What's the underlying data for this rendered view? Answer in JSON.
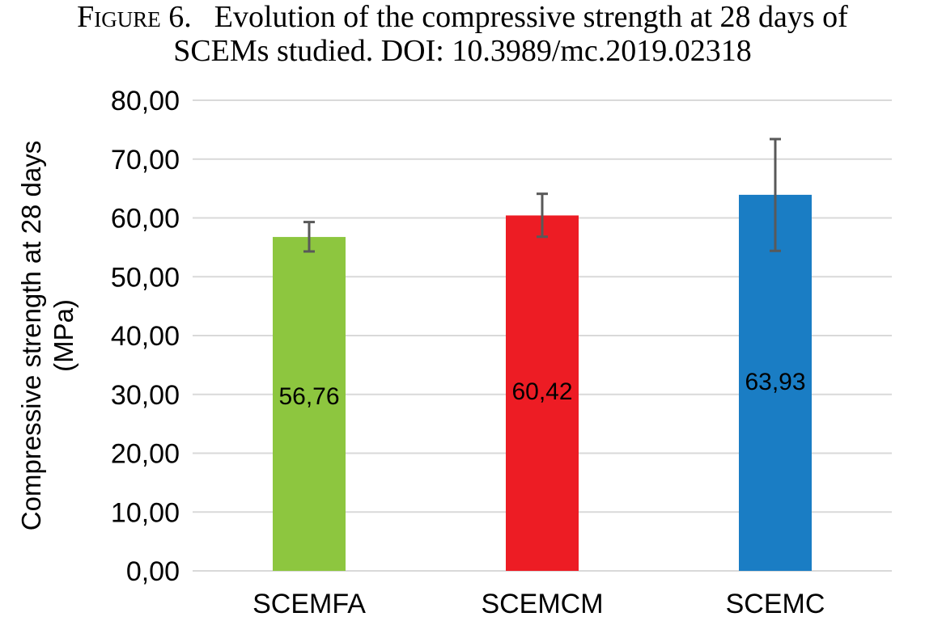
{
  "caption": {
    "label": "Figure 6.",
    "line1": "Evolution of the compressive strength at 28 days of",
    "line2": "SCEMs studied. DOI: 10.3989/mc.2019.02318"
  },
  "chart_data": {
    "type": "bar",
    "title": "",
    "xlabel": "",
    "ylabel_lines": [
      "Compressive strength at 28 days",
      "(MPa)"
    ],
    "categories": [
      "SCEMFA",
      "SCEMCM",
      "SCEMC"
    ],
    "values": [
      56.76,
      60.42,
      63.93
    ],
    "value_labels": [
      "56,76",
      "60,42",
      "63,93"
    ],
    "error_bars": [
      {
        "high": 59.3,
        "low": 54.3
      },
      {
        "high": 64.1,
        "low": 56.8
      },
      {
        "high": 73.4,
        "low": 54.4
      }
    ],
    "colors": [
      "#8dc63f",
      "#ed1c24",
      "#1a7dc4"
    ],
    "ylim": [
      0,
      80
    ],
    "yticks": [
      {
        "value": 0,
        "label": "0,00"
      },
      {
        "value": 10,
        "label": "10,00"
      },
      {
        "value": 20,
        "label": "20,00"
      },
      {
        "value": 30,
        "label": "30,00"
      },
      {
        "value": 40,
        "label": "40,00"
      },
      {
        "value": 50,
        "label": "50,00"
      },
      {
        "value": 60,
        "label": "60,00"
      },
      {
        "value": 70,
        "label": "70,00"
      },
      {
        "value": 80,
        "label": "80,00"
      }
    ],
    "grid": true,
    "legend": "none",
    "gridline_color": "#d9d9d9",
    "error_bar_color": "#595959"
  }
}
